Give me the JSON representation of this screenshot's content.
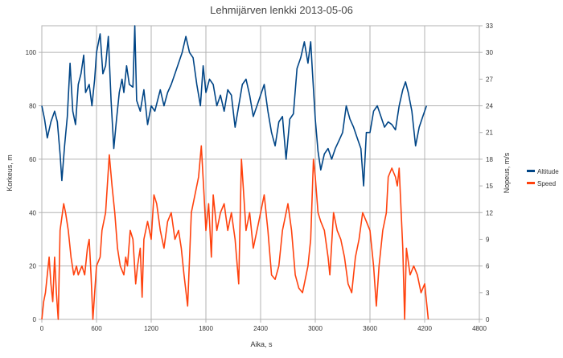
{
  "chart_data": {
    "type": "line",
    "title": "Lehmijärven lenkki 2013-05-06",
    "xlabel": "Aika, s",
    "ylabel": "Korkeus, m",
    "y2label": "Nopeus, m/s",
    "xlim": [
      0,
      4800
    ],
    "ylim": [
      0,
      110
    ],
    "y2lim": [
      0,
      33
    ],
    "xticks": [
      "0",
      "600",
      "1200",
      "1800",
      "2400",
      "3000",
      "3600",
      "4200",
      "4800"
    ],
    "yticks": [
      "0",
      "20",
      "40",
      "60",
      "80",
      "100"
    ],
    "y2ticks": [
      "0",
      "3",
      "6",
      "9",
      "12",
      "15",
      "18",
      "21",
      "24",
      "27",
      "30",
      "33"
    ],
    "grid": true,
    "legend_position": "right",
    "series": [
      {
        "name": "Altitude",
        "axis": "left",
        "color": "#004586",
        "points": [
          [
            0,
            80
          ],
          [
            30,
            75
          ],
          [
            60,
            68
          ],
          [
            100,
            74
          ],
          [
            140,
            78
          ],
          [
            170,
            74
          ],
          [
            200,
            62
          ],
          [
            220,
            52
          ],
          [
            250,
            65
          ],
          [
            280,
            76
          ],
          [
            310,
            96
          ],
          [
            340,
            78
          ],
          [
            370,
            73
          ],
          [
            400,
            88
          ],
          [
            430,
            92
          ],
          [
            460,
            99
          ],
          [
            480,
            85
          ],
          [
            520,
            88
          ],
          [
            550,
            80
          ],
          [
            580,
            90
          ],
          [
            600,
            100
          ],
          [
            640,
            107
          ],
          [
            670,
            92
          ],
          [
            700,
            95
          ],
          [
            730,
            106
          ],
          [
            760,
            82
          ],
          [
            790,
            64
          ],
          [
            820,
            75
          ],
          [
            850,
            85
          ],
          [
            880,
            90
          ],
          [
            900,
            85
          ],
          [
            930,
            95
          ],
          [
            960,
            88
          ],
          [
            1000,
            87
          ],
          [
            1020,
            110
          ],
          [
            1040,
            82
          ],
          [
            1080,
            78
          ],
          [
            1120,
            86
          ],
          [
            1160,
            73
          ],
          [
            1200,
            80
          ],
          [
            1240,
            78
          ],
          [
            1300,
            86
          ],
          [
            1340,
            80
          ],
          [
            1380,
            85
          ],
          [
            1420,
            88
          ],
          [
            1460,
            92
          ],
          [
            1500,
            96
          ],
          [
            1540,
            100
          ],
          [
            1580,
            106
          ],
          [
            1620,
            100
          ],
          [
            1660,
            98
          ],
          [
            1700,
            88
          ],
          [
            1740,
            80
          ],
          [
            1770,
            95
          ],
          [
            1800,
            85
          ],
          [
            1840,
            90
          ],
          [
            1880,
            88
          ],
          [
            1920,
            80
          ],
          [
            1960,
            84
          ],
          [
            2000,
            78
          ],
          [
            2040,
            86
          ],
          [
            2080,
            84
          ],
          [
            2120,
            72
          ],
          [
            2160,
            80
          ],
          [
            2200,
            88
          ],
          [
            2240,
            90
          ],
          [
            2280,
            84
          ],
          [
            2320,
            76
          ],
          [
            2360,
            80
          ],
          [
            2400,
            84
          ],
          [
            2440,
            88
          ],
          [
            2480,
            78
          ],
          [
            2520,
            70
          ],
          [
            2560,
            65
          ],
          [
            2600,
            74
          ],
          [
            2640,
            76
          ],
          [
            2680,
            60
          ],
          [
            2720,
            75
          ],
          [
            2760,
            77
          ],
          [
            2800,
            94
          ],
          [
            2840,
            98
          ],
          [
            2880,
            104
          ],
          [
            2920,
            96
          ],
          [
            2950,
            104
          ],
          [
            2970,
            92
          ],
          [
            3000,
            75
          ],
          [
            3030,
            63
          ],
          [
            3060,
            56
          ],
          [
            3100,
            62
          ],
          [
            3140,
            64
          ],
          [
            3180,
            60
          ],
          [
            3220,
            64
          ],
          [
            3260,
            67
          ],
          [
            3300,
            70
          ],
          [
            3340,
            80
          ],
          [
            3380,
            75
          ],
          [
            3420,
            72
          ],
          [
            3460,
            68
          ],
          [
            3500,
            64
          ],
          [
            3530,
            50
          ],
          [
            3560,
            70
          ],
          [
            3600,
            70
          ],
          [
            3640,
            78
          ],
          [
            3680,
            80
          ],
          [
            3720,
            76
          ],
          [
            3760,
            72
          ],
          [
            3800,
            74
          ],
          [
            3840,
            73
          ],
          [
            3880,
            71
          ],
          [
            3920,
            80
          ],
          [
            3960,
            86
          ],
          [
            3990,
            89
          ],
          [
            4020,
            85
          ],
          [
            4060,
            78
          ],
          [
            4100,
            65
          ],
          [
            4140,
            72
          ],
          [
            4180,
            76
          ],
          [
            4220,
            80
          ]
        ]
      },
      {
        "name": "Speed",
        "axis": "right",
        "color": "#ff420e",
        "points": [
          [
            0,
            0
          ],
          [
            20,
            2
          ],
          [
            40,
            3
          ],
          [
            60,
            5
          ],
          [
            80,
            7
          ],
          [
            100,
            4
          ],
          [
            120,
            2
          ],
          [
            140,
            7
          ],
          [
            160,
            3
          ],
          [
            180,
            0
          ],
          [
            200,
            10
          ],
          [
            240,
            13
          ],
          [
            260,
            12
          ],
          [
            290,
            10
          ],
          [
            320,
            7
          ],
          [
            350,
            5
          ],
          [
            380,
            6
          ],
          [
            400,
            5
          ],
          [
            440,
            6
          ],
          [
            470,
            5
          ],
          [
            500,
            8
          ],
          [
            520,
            9
          ],
          [
            540,
            5
          ],
          [
            560,
            0
          ],
          [
            580,
            3
          ],
          [
            600,
            6
          ],
          [
            640,
            7
          ],
          [
            660,
            10
          ],
          [
            700,
            12
          ],
          [
            740,
            18.5
          ],
          [
            770,
            15
          ],
          [
            800,
            12
          ],
          [
            830,
            8
          ],
          [
            860,
            6
          ],
          [
            900,
            5
          ],
          [
            920,
            7
          ],
          [
            940,
            6
          ],
          [
            970,
            10
          ],
          [
            1000,
            9
          ],
          [
            1030,
            4
          ],
          [
            1050,
            6
          ],
          [
            1080,
            8
          ],
          [
            1100,
            2.5
          ],
          [
            1120,
            9
          ],
          [
            1160,
            11
          ],
          [
            1200,
            9
          ],
          [
            1230,
            14
          ],
          [
            1260,
            13
          ],
          [
            1300,
            10
          ],
          [
            1340,
            8
          ],
          [
            1380,
            11
          ],
          [
            1420,
            12
          ],
          [
            1460,
            9
          ],
          [
            1500,
            10
          ],
          [
            1530,
            8
          ],
          [
            1560,
            5
          ],
          [
            1600,
            1.5
          ],
          [
            1640,
            12
          ],
          [
            1680,
            14
          ],
          [
            1720,
            16
          ],
          [
            1750,
            19.5
          ],
          [
            1780,
            14
          ],
          [
            1800,
            10
          ],
          [
            1830,
            13
          ],
          [
            1860,
            7
          ],
          [
            1880,
            14
          ],
          [
            1920,
            10
          ],
          [
            1960,
            12
          ],
          [
            2000,
            13
          ],
          [
            2040,
            10
          ],
          [
            2080,
            12
          ],
          [
            2120,
            9
          ],
          [
            2160,
            4
          ],
          [
            2190,
            18
          ],
          [
            2240,
            10
          ],
          [
            2280,
            12
          ],
          [
            2320,
            8
          ],
          [
            2360,
            10
          ],
          [
            2400,
            12
          ],
          [
            2440,
            14
          ],
          [
            2480,
            10
          ],
          [
            2520,
            5
          ],
          [
            2560,
            4.5
          ],
          [
            2600,
            6
          ],
          [
            2640,
            10
          ],
          [
            2660,
            11
          ],
          [
            2700,
            13
          ],
          [
            2740,
            10
          ],
          [
            2780,
            5
          ],
          [
            2820,
            3.5
          ],
          [
            2860,
            3
          ],
          [
            2880,
            4
          ],
          [
            2920,
            6
          ],
          [
            2950,
            9
          ],
          [
            2980,
            18
          ],
          [
            3000,
            16
          ],
          [
            3030,
            12
          ],
          [
            3060,
            11
          ],
          [
            3100,
            10
          ],
          [
            3140,
            7
          ],
          [
            3160,
            5
          ],
          [
            3200,
            12
          ],
          [
            3240,
            10
          ],
          [
            3280,
            9
          ],
          [
            3320,
            7
          ],
          [
            3360,
            4
          ],
          [
            3400,
            3
          ],
          [
            3440,
            7
          ],
          [
            3480,
            9
          ],
          [
            3520,
            12
          ],
          [
            3560,
            11
          ],
          [
            3600,
            10
          ],
          [
            3640,
            6
          ],
          [
            3670,
            1.5
          ],
          [
            3700,
            6
          ],
          [
            3740,
            10
          ],
          [
            3780,
            12
          ],
          [
            3800,
            16
          ],
          [
            3840,
            17
          ],
          [
            3880,
            16
          ],
          [
            3900,
            15
          ],
          [
            3920,
            17
          ],
          [
            3960,
            8
          ],
          [
            3980,
            0
          ],
          [
            4000,
            8
          ],
          [
            4040,
            5
          ],
          [
            4080,
            6
          ],
          [
            4120,
            5
          ],
          [
            4160,
            3
          ],
          [
            4200,
            4
          ],
          [
            4220,
            2
          ],
          [
            4240,
            0
          ]
        ]
      }
    ]
  }
}
